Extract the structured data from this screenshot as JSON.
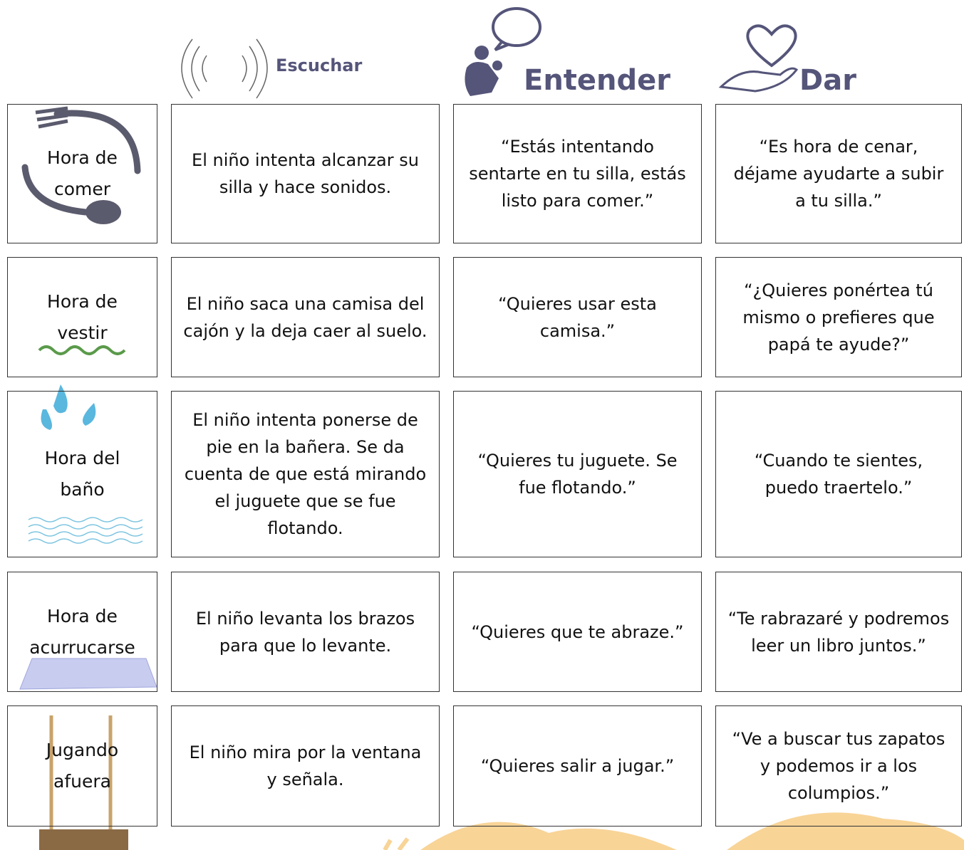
{
  "header": {
    "columns": [
      "Escuchar",
      "Entender",
      "Dar"
    ]
  },
  "rows": [
    {
      "label": "Hora de comer",
      "cells": [
        "El niño intenta alcanzar su silla y hace sonidos.",
        "“Estás intentando sentarte en tu silla, estás listo para comer.”",
        "“Es hora de cenar, déjame ayudarte a subir a tu silla.”"
      ]
    },
    {
      "label": "Hora de vestir",
      "cells": [
        "El niño saca una camisa del cajón y la deja caer al suelo.",
        "“Quieres usar esta camisa.”",
        "“¿Quieres ponértea tú mismo o prefieres que papá te ayude?”"
      ]
    },
    {
      "label": "Hora del baño",
      "cells": [
        "El niño intenta ponerse de pie en la bañera. Se da cuenta de que está mirando el juguete que se fue flotando.",
        "“Quieres tu juguete. Se fue flotando.”",
        "“Cuando te sientes, puedo traertelo.”"
      ]
    },
    {
      "label": "Hora de acurrucarse",
      "cells": [
        "El niño levanta los brazos para que lo levante.",
        "“Quieres que te abraze.”",
        "“Te rabrazaré y podremos leer un libro juntos.”"
      ]
    },
    {
      "label": "Jugando afuera",
      "cells": [
        "El niño mira por la ventana y señala.",
        "“Quieres salir a jugar.”",
        "“Ve a buscar tus zapatos y podemos ir a los columpios.”"
      ]
    }
  ]
}
